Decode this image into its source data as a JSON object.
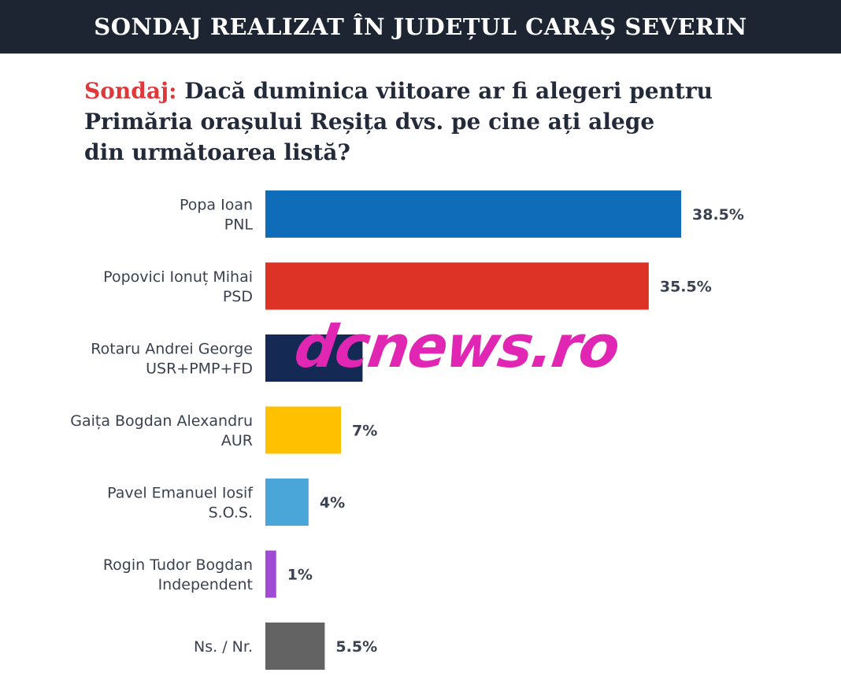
{
  "header": {
    "title": "SONDAJ REALIZAT ÎN JUDEȚUL CARAȘ SEVERIN"
  },
  "question": {
    "label": "Sondaj:",
    "line1": "Dacă duminica viitoare ar fi alegeri pentru",
    "line2": "Primăria orașului Reșița dvs. pe cine ați alege",
    "line3": "din următoarea listă?"
  },
  "watermark": {
    "text": "dcnews.ro",
    "color": "#e126b3"
  },
  "chart_data": {
    "type": "bar",
    "orientation": "horizontal",
    "categories": [
      [
        "Popa Ioan",
        "PNL"
      ],
      [
        "Popovici Ionuț Mihai",
        "PSD"
      ],
      [
        "Rotaru Andrei George",
        "USR+PMP+FD"
      ],
      [
        "Gaița Bogdan Alexandru",
        "AUR"
      ],
      [
        "Pavel Emanuel Iosif",
        "S.O.S."
      ],
      [
        "Rogin Tudor Bogdan",
        "Independent"
      ],
      [
        "Ns. / Nr."
      ]
    ],
    "values": [
      38.5,
      35.5,
      9,
      7,
      4,
      1,
      5.5
    ],
    "value_labels": [
      "38.5%",
      "35.5%",
      "",
      "7%",
      "4%",
      "1%",
      "5.5%"
    ],
    "colors": [
      "#0f6cb8",
      "#dd3226",
      "#142a55",
      "#ffc000",
      "#4aa6d8",
      "#a04bd3",
      "#636363"
    ],
    "xlim": [
      0,
      38.5
    ],
    "grid": false,
    "legend": "none"
  }
}
